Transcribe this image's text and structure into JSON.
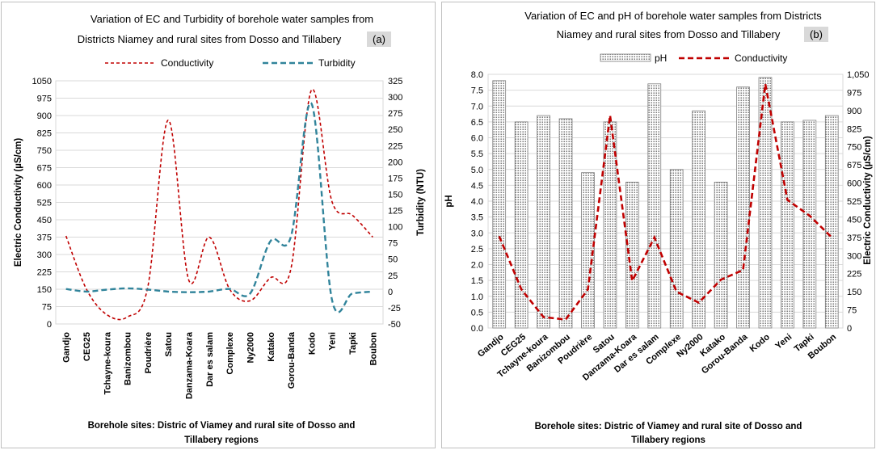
{
  "chart_data": [
    {
      "type": "line",
      "panel_tag": "(a)",
      "title_lines": [
        "Variation of EC and Turbidity of borehole water samples from",
        "Districts Niamey and rural sites from Dosso and Tillabery"
      ],
      "xlabel_lines": [
        "Borehole sites: Distric of Viamey and rural site  of Dosso and",
        "Tillabery regions"
      ],
      "ylabel": "Electric Conductivity (µS/cm)",
      "y2label": "Turbidity (NTU)",
      "ylim": [
        0,
        1050
      ],
      "yticks": [
        "0",
        "75",
        "150",
        "225",
        "300",
        "375",
        "450",
        "525",
        "600",
        "675",
        "750",
        "825",
        "900",
        "975",
        "1050"
      ],
      "y2lim": [
        -50,
        325
      ],
      "y2ticks": [
        "-50",
        "-25",
        "0",
        "25",
        "50",
        "75",
        "100",
        "125",
        "150",
        "175",
        "200",
        "225",
        "250",
        "275",
        "300",
        "325"
      ],
      "categories": [
        "Gandjo",
        "CEG25",
        "Tchayne-koura",
        "Banizombou",
        "Poudrière",
        "Satou",
        "Danzama-Koara",
        "Dar es salam",
        "Complexe",
        "Ny2000",
        "Katako",
        "Gorou-Banda",
        "Kodo",
        "Yeni",
        "Tapki",
        "Boubon"
      ],
      "legend_position": "top",
      "series": [
        {
          "name": "Conductivity",
          "axis": "left",
          "color": "#c00000",
          "values": [
            380,
            150,
            40,
            30,
            160,
            880,
            190,
            375,
            150,
            100,
            200,
            240,
            1010,
            530,
            470,
            375
          ]
        },
        {
          "name": "Turbidity",
          "axis": "right",
          "color": "#31849b",
          "values": [
            4,
            0,
            3,
            5,
            3,
            0,
            -1,
            0,
            4,
            -3,
            78,
            85,
            290,
            -12,
            -3,
            0
          ]
        }
      ]
    },
    {
      "type": "bar",
      "panel_tag": "(b)",
      "title_lines": [
        "Variation of EC and pH of borehole water samples from Districts",
        "Niamey and rural sites from Dosso and Tillabery"
      ],
      "xlabel_lines": [
        "Borehole sites: Distric of Viamey and rural site  of Dosso and",
        "Tillabery regions"
      ],
      "ylabel": "pH",
      "y2label": "Electric Conductivity (µS/cm)",
      "ylim": [
        0,
        8
      ],
      "yticks": [
        "0.0",
        "0.5",
        "1.0",
        "1.5",
        "2.0",
        "2.5",
        "3.0",
        "3.5",
        "4.0",
        "4.5",
        "5.0",
        "5.5",
        "6.0",
        "6.5",
        "7.0",
        "7.5",
        "8.0"
      ],
      "y2lim": [
        0,
        1050
      ],
      "y2ticks": [
        "0",
        "75",
        "150",
        "225",
        "300",
        "375",
        "450",
        "525",
        "600",
        "675",
        "750",
        "825",
        "900",
        "975",
        "1,050"
      ],
      "categories": [
        "Gandjo",
        "CEG25",
        "Tchayne-koura",
        "Banizombou",
        "Poudrière",
        "Satou",
        "Danzama-Koara",
        "Dar es salam",
        "Complexe",
        "Ny2000",
        "Katako",
        "Gorou-Banda",
        "Kodo",
        "Yeni",
        "Tapki",
        "Boubon"
      ],
      "legend_position": "top",
      "series": [
        {
          "name": "pH",
          "kind": "bar",
          "axis": "left",
          "color": "#808080",
          "values": [
            7.8,
            6.5,
            6.7,
            6.6,
            4.9,
            6.5,
            4.6,
            7.7,
            5.0,
            6.85,
            4.6,
            7.6,
            7.9,
            6.5,
            6.55,
            6.7
          ]
        },
        {
          "name": "Conductivity",
          "kind": "line",
          "axis": "right",
          "color": "#c00000",
          "values": [
            380,
            160,
            45,
            35,
            160,
            880,
            195,
            375,
            150,
            105,
            200,
            240,
            1010,
            530,
            465,
            375
          ]
        }
      ]
    }
  ]
}
